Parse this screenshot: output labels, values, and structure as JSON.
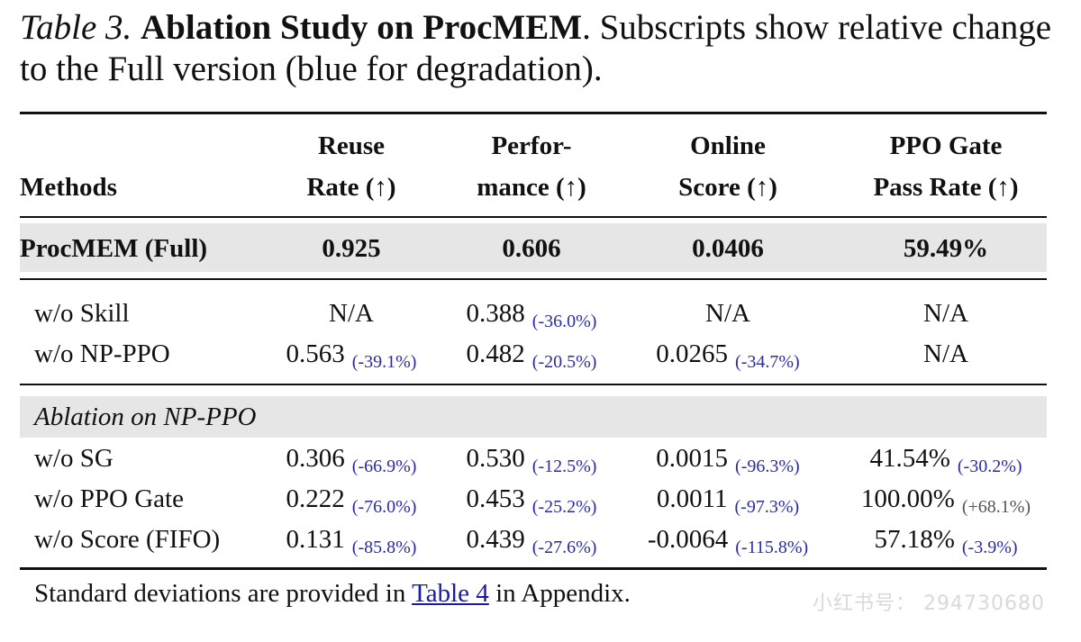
{
  "caption": {
    "label": "Table 3.",
    "bold": "Ablation Study on ProcMEM",
    "rest": ". Subscripts show relative change to the Full version (blue for degradation)."
  },
  "headers": {
    "methods": "Methods",
    "reuse": [
      "Reuse",
      "Rate (↑)"
    ],
    "performance": [
      "Perfor-",
      "mance (↑)"
    ],
    "online": [
      "Online",
      "Score (↑)"
    ],
    "ppo": [
      "PPO Gate",
      "Pass Rate (↑)"
    ]
  },
  "full_row": {
    "method": "ProcMEM (Full)",
    "reuse": "0.925",
    "performance": "0.606",
    "online": "0.0406",
    "ppo": "59.49%"
  },
  "rows_group1": [
    {
      "method": "w/o Skill",
      "reuse": {
        "value": "N/A",
        "delta": ""
      },
      "performance": {
        "value": "0.388",
        "delta": "(-36.0%)"
      },
      "online": {
        "value": "N/A",
        "delta": ""
      },
      "ppo": {
        "value": "N/A",
        "delta": ""
      }
    },
    {
      "method": "w/o NP-PPO",
      "reuse": {
        "value": "0.563",
        "delta": "(-39.1%)"
      },
      "performance": {
        "value": "0.482",
        "delta": "(-20.5%)"
      },
      "online": {
        "value": "0.0265",
        "delta": "(-34.7%)"
      },
      "ppo": {
        "value": "N/A",
        "delta": ""
      }
    }
  ],
  "section_label": "Ablation on NP-PPO",
  "rows_group2": [
    {
      "method": "w/o SG",
      "reuse": {
        "value": "0.306",
        "delta": "(-66.9%)"
      },
      "performance": {
        "value": "0.530",
        "delta": "(-12.5%)"
      },
      "online": {
        "value": "0.0015",
        "delta": "(-96.3%)"
      },
      "ppo": {
        "value": "41.54%",
        "delta": "(-30.2%)"
      }
    },
    {
      "method": "w/o PPO Gate",
      "reuse": {
        "value": "0.222",
        "delta": "(-76.0%)"
      },
      "performance": {
        "value": "0.453",
        "delta": "(-25.2%)"
      },
      "online": {
        "value": "0.0011",
        "delta": "(-97.3%)"
      },
      "ppo": {
        "value": "100.00%",
        "delta": "(+68.1%)"
      }
    },
    {
      "method": "w/o Score (FIFO)",
      "reuse": {
        "value": "0.131",
        "delta": "(-85.8%)"
      },
      "performance": {
        "value": "0.439",
        "delta": "(-27.6%)"
      },
      "online": {
        "value": "-0.0064",
        "delta": "(-115.8%)"
      },
      "ppo": {
        "value": "57.18%",
        "delta": "(-3.9%)"
      }
    }
  ],
  "footnote": {
    "before": "Standard deviations are provided in ",
    "link": "Table 4",
    "after": " in Appendix."
  },
  "watermark": "小红书号： 294730680",
  "colors": {
    "degradation": "#2b2ba8",
    "improvement": "#555555",
    "shade": "#e6e6e6"
  }
}
